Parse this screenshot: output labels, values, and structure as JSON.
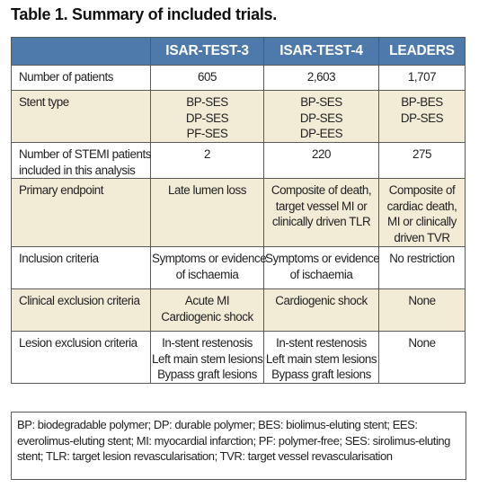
{
  "title": "Table 1. Summary of included trials.",
  "table": {
    "columns": [
      "",
      "ISAR-TEST-3",
      "ISAR-TEST-4",
      "LEADERS"
    ],
    "rows": [
      {
        "label": [
          "Number of patients"
        ],
        "cells": [
          [
            "605"
          ],
          [
            "2,603"
          ],
          [
            "1,707"
          ]
        ]
      },
      {
        "label": [
          "Stent type"
        ],
        "cells": [
          [
            "BP-SES",
            "DP-SES",
            "PF-SES"
          ],
          [
            "BP-SES",
            "DP-SES",
            "DP-EES"
          ],
          [
            "BP-BES",
            "DP-SES"
          ]
        ]
      },
      {
        "label": [
          "Number of STEMI patients",
          "included in this analysis"
        ],
        "cells": [
          [
            "2"
          ],
          [
            "220"
          ],
          [
            "275"
          ]
        ]
      },
      {
        "label": [
          "Primary endpoint"
        ],
        "cells": [
          [
            "Late lumen loss"
          ],
          [
            "Composite of death,",
            "target vessel MI or",
            "clinically driven TLR"
          ],
          [
            "Composite of",
            "cardiac death,",
            "MI or clinically",
            "driven TVR"
          ]
        ]
      },
      {
        "label": [
          "Inclusion criteria"
        ],
        "cells": [
          [
            "Symptoms or evidence",
            "of ischaemia"
          ],
          [
            "Symptoms or evidence",
            "of ischaemia"
          ],
          [
            "No restriction"
          ]
        ]
      },
      {
        "label": [
          "Clinical exclusion criteria"
        ],
        "cells": [
          [
            "Acute MI",
            "Cardiogenic shock"
          ],
          [
            "Cardiogenic shock"
          ],
          [
            "None"
          ]
        ]
      },
      {
        "label": [
          "Lesion exclusion criteria"
        ],
        "cells": [
          [
            "In-stent restenosis",
            "Left main stem lesions",
            "Bypass graft lesions"
          ],
          [
            "In-stent restenosis",
            "Left main stem lesions",
            "Bypass graft lesions"
          ],
          [
            "None"
          ]
        ]
      }
    ]
  },
  "footnote": [
    "BP: biodegradable polymer; DP: durable polymer; BES: biolimus-eluting stent; EES:",
    "everolimus-eluting stent; MI: myocardial infarction; PF: polymer-free; SES: sirolimus-eluting",
    "stent; TLR: target lesion revascularisation; TVR: target vessel revascularisation"
  ],
  "colors": {
    "header_bg": "#4e79ab",
    "alt_row_bg": "#f2ebd6",
    "border": "#5a5a5a"
  }
}
